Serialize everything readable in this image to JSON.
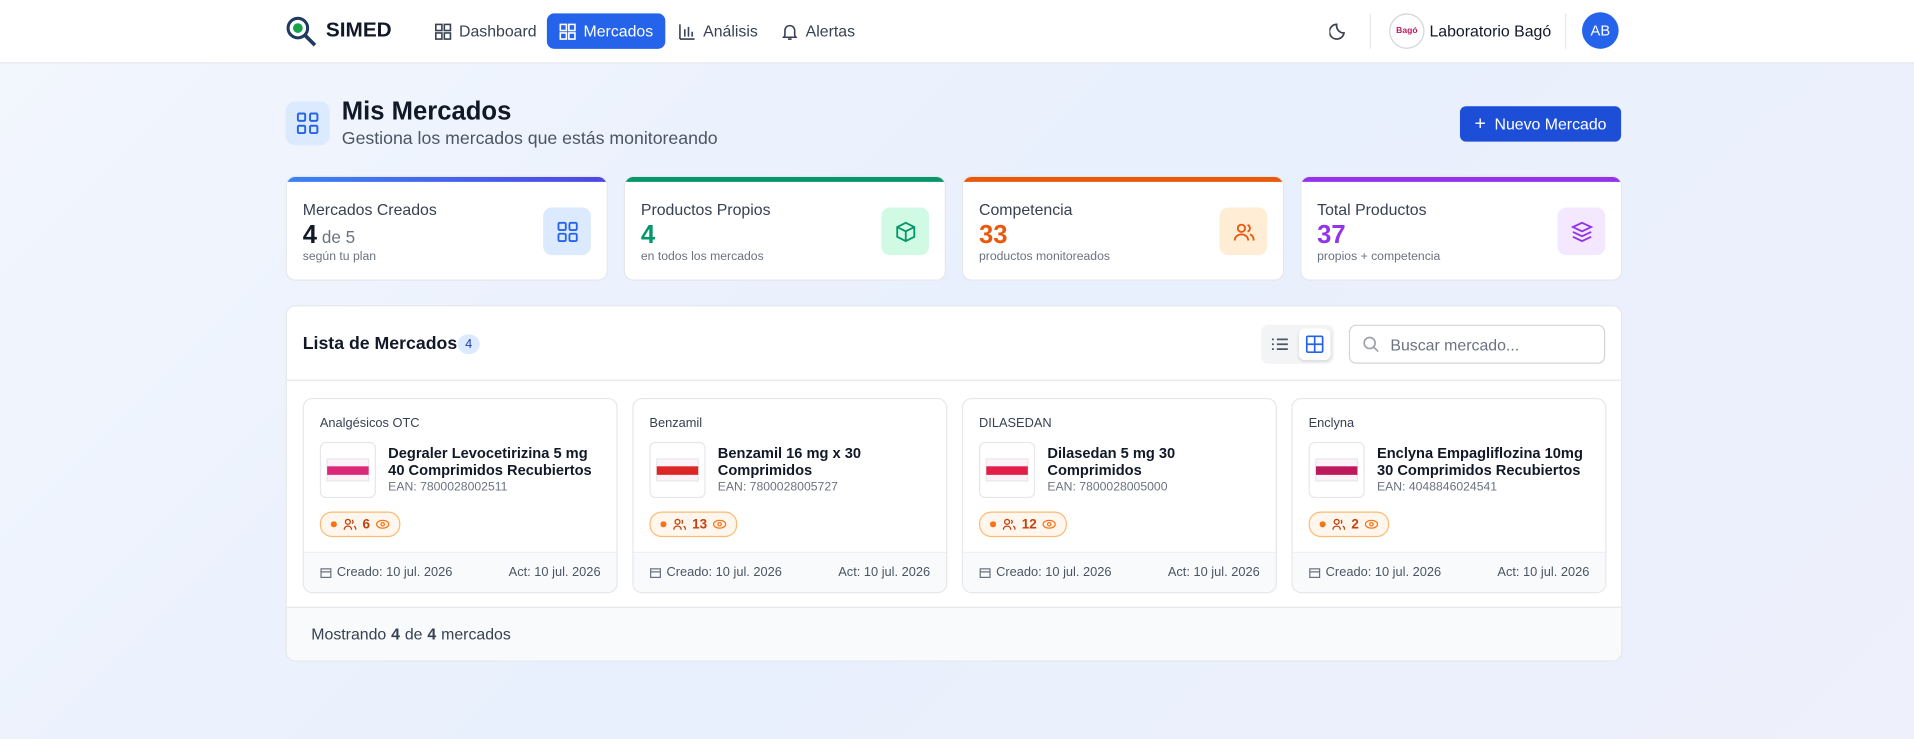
{
  "nav": {
    "brand": "SIMED",
    "items": [
      "Dashboard",
      "Mercados",
      "Análisis",
      "Alertas"
    ],
    "active": 1,
    "company_logo": "Bagó",
    "company": "Laboratorio Bagó",
    "avatar": "AB"
  },
  "header": {
    "title": "Mis Mercados",
    "subtitle": "Gestiona los mercados que estás monitoreando",
    "button": "Nuevo Mercado"
  },
  "stats": [
    {
      "label": "Mercados Creados",
      "value": 4,
      "extra": "de 5",
      "note": "según tu plan",
      "color": "#111827",
      "bar": "linear-gradient(90deg,#3b82f6,#4f46e5)",
      "iconbg": "#dbeafe",
      "iconcolor": "#2563eb"
    },
    {
      "label": "Productos Propios",
      "value": 4,
      "note": "en todos los mercados",
      "color": "#059669",
      "bar": "#059669",
      "iconbg": "#d1fae5",
      "iconcolor": "#059669"
    },
    {
      "label": "Competencia",
      "value": 33,
      "note": "productos monitoreados",
      "color": "#ea580c",
      "bar": "#ea580c",
      "iconbg": "#ffedd5",
      "iconcolor": "#ea580c"
    },
    {
      "label": "Total Productos",
      "value": 37,
      "note": "propios + competencia",
      "color": "#9333ea",
      "bar": "#9333ea",
      "iconbg": "#f3e8ff",
      "iconcolor": "#9333ea"
    }
  ],
  "list": {
    "title": "Lista de Mercados",
    "count": 4,
    "search_placeholder": "Buscar mercado..."
  },
  "markets": [
    {
      "category": "Analgésicos OTC",
      "product": "Degraler Levocetirizina 5 mg 40 Comprimidos Recubiertos",
      "ean": "EAN: 7800028002511",
      "competitors": 6,
      "created": "Creado: 10 jul. 2026",
      "updated": "Act: 10 jul. 2026"
    },
    {
      "category": "Benzamil",
      "product": "Benzamil 16 mg x 30 Comprimidos",
      "ean": "EAN: 7800028005727",
      "competitors": 13,
      "created": "Creado: 10 jul. 2026",
      "updated": "Act: 10 jul. 2026"
    },
    {
      "category": "DILASEDAN",
      "product": "Dilasedan 5 mg 30 Comprimidos",
      "ean": "EAN: 7800028005000",
      "competitors": 12,
      "created": "Creado: 10 jul. 2026",
      "updated": "Act: 10 jul. 2026"
    },
    {
      "category": "Enclyna",
      "product": "Enclyna Empagliflozina 10mg 30 Comprimidos Recubiertos",
      "ean": "EAN: 4048846024541",
      "competitors": 2,
      "created": "Creado: 10 jul. 2026",
      "updated": "Act: 10 jul. 2026"
    }
  ],
  "footer": {
    "prefix": "Mostrando",
    "shown": 4,
    "of": "de",
    "total": 4,
    "suffix": "mercados"
  }
}
